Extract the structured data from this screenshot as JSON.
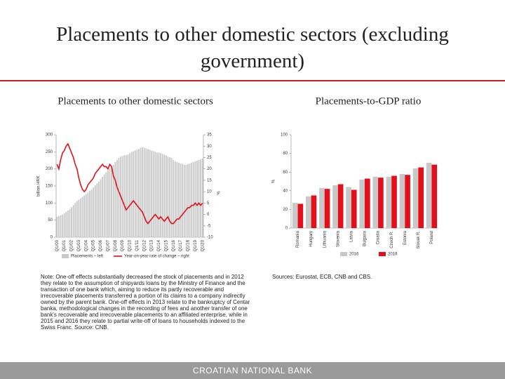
{
  "header": {
    "title": "Placements to other domestic sectors (excluding government)"
  },
  "chart_data": [
    {
      "type": "combo",
      "title": "Placements to other domestic sectors",
      "ylabel": "billion HRK",
      "y2label": "%",
      "categories": [
        "Q1/00",
        null,
        null,
        null,
        "Q1/01",
        null,
        null,
        null,
        "Q1/02",
        null,
        null,
        null,
        "Q1/03",
        null,
        null,
        null,
        "Q1/04",
        null,
        null,
        null,
        "Q1/05",
        null,
        null,
        null,
        "Q1/06",
        null,
        null,
        null,
        "Q1/07",
        null,
        null,
        null,
        "Q1/08",
        null,
        null,
        null,
        "Q1/09",
        null,
        null,
        null,
        "Q1/10",
        null,
        null,
        null,
        "Q1/11",
        null,
        null,
        null,
        "Q1/12",
        null,
        null,
        null,
        "Q1/13",
        null,
        null,
        null,
        "Q1/14",
        null,
        null,
        null,
        "Q1/15",
        null,
        null,
        null,
        "Q1/16",
        null,
        null,
        null,
        "Q1/17",
        null,
        null,
        null,
        "Q1/18",
        null,
        null,
        null,
        "Q1/19",
        null,
        null,
        null,
        "Q1/20"
      ],
      "series": [
        {
          "name": "Placements – left",
          "color": "#c8c8c8",
          "values": [
            60,
            62,
            64,
            66,
            70,
            74,
            78,
            82,
            88,
            94,
            100,
            106,
            110,
            114,
            118,
            122,
            126,
            131,
            136,
            140,
            146,
            152,
            158,
            163,
            170,
            177,
            184,
            190,
            196,
            202,
            208,
            212,
            220,
            226,
            232,
            236,
            238,
            240,
            240,
            242,
            246,
            250,
            252,
            254,
            256,
            258,
            262,
            264,
            262,
            260,
            258,
            256,
            254,
            252,
            250,
            248,
            248,
            246,
            244,
            242,
            240,
            236,
            234,
            232,
            226,
            222,
            220,
            218,
            216,
            214,
            212,
            212,
            214,
            216,
            218,
            220,
            222,
            224,
            226,
            228,
            230
          ]
        },
        {
          "name": "Year-on-year rate of change – right",
          "color": "#e3101b",
          "axis": "y2",
          "values": [
            22,
            20,
            24,
            27,
            28,
            30,
            31,
            29,
            27,
            25,
            22,
            20,
            16,
            13,
            11,
            10,
            11,
            13,
            14,
            15,
            16,
            18,
            19,
            20,
            21,
            22,
            21,
            21,
            20,
            22,
            21,
            17,
            15,
            12,
            10,
            8,
            6,
            4,
            2,
            3,
            4,
            5,
            6,
            5,
            4,
            3,
            2,
            1,
            -1,
            -3,
            -4,
            -3,
            -2,
            -1,
            0,
            -1,
            -2,
            -1,
            -2,
            -3,
            -2,
            -1,
            -3,
            -4,
            -4,
            -3,
            -2,
            -2,
            -1,
            0,
            1,
            2,
            3,
            3,
            4,
            4,
            5,
            4,
            5,
            4,
            5
          ]
        }
      ],
      "ylim": [
        0,
        300
      ],
      "yticks": [
        0,
        50,
        100,
        150,
        200,
        250,
        300
      ],
      "y2lim": [
        -10,
        35
      ],
      "y2ticks": [
        -10,
        -5,
        0,
        5,
        10,
        15,
        20,
        25,
        30,
        35
      ]
    },
    {
      "type": "bar",
      "title": "Placements-to-GDP ratio",
      "ylabel": "%",
      "categories": [
        "Romania",
        "Hungary",
        "Lithuania",
        "Slovenia",
        "Latvia",
        "Bulgaria",
        "Croatia",
        "Czech R.",
        "Estonia",
        "Slovak R.",
        "Poland"
      ],
      "series": [
        {
          "name": "2016",
          "color": "#c8c8c8",
          "values": [
            27,
            34,
            43,
            46,
            44,
            52,
            55,
            55,
            58,
            64,
            70
          ]
        },
        {
          "name": "2019",
          "color": "#e3101b",
          "values": [
            26,
            35,
            42,
            47,
            41,
            53,
            54,
            56,
            57,
            65,
            68
          ]
        }
      ],
      "ylim": [
        0,
        100
      ],
      "yticks": [
        0,
        20,
        40,
        60,
        80,
        100
      ]
    }
  ],
  "notes": "Note: One-off effects substantially decreased the stock of placements and in 2012 they relate to the assumption of shipyards loans by the Ministry of Finance and the transaction of one bank which, aiming to reduce its partly recoverable and irrecoverable placements transferred a portion of its claims to a company indirectly owned by the parent bank. One-off effects in 2013 relate to the bankruptcy of Centar banka, methodological changes in the recording of fees and another transfer of one bank's recoverable and irrecoverable placements to an affiliated enterprise, while in 2015 and 2016 they relate to partial write-off of loans to households indexed to the Swiss Franc. Source: CNB.",
  "sources": "Sources: Eurostat, ECB, CNB and CBS.",
  "footer": "CROATIAN NATIONAL BANK"
}
